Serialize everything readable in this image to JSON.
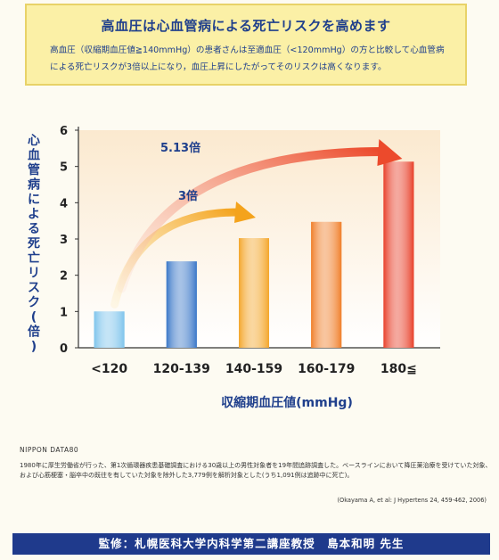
{
  "header": {
    "title": "高血圧は心血管病による死亡リスクを高めます",
    "description": "高血圧（収縮期血圧値≧140mmHg）の患者さんは至適血圧（<120mmHg）の方と比較して心血管病による死亡リスクが3倍以上になり，血圧上昇にしたがってそのリスクは高くなります。"
  },
  "chart_data": {
    "type": "bar",
    "categories": [
      "<120",
      "120-139",
      "140-159",
      "160-179",
      "180≦"
    ],
    "values": [
      1.0,
      2.38,
      3.02,
      3.47,
      5.13
    ],
    "xlabel": "収縮期血圧値(mmHg)",
    "ylabel": "心血管病による死亡リスク(倍)",
    "ylim": [
      0,
      6
    ],
    "yticks": [
      "0",
      "1",
      "2",
      "3",
      "4",
      "5",
      "6"
    ],
    "annotations": [
      "3倍",
      "5.13倍"
    ],
    "bar_colors": [
      "#7ec4ec",
      "#3b78c8",
      "#f4a62a",
      "#f07f2a",
      "#e8402a"
    ],
    "grid": false
  },
  "source": {
    "study": "NIPPON DATA80",
    "note": "1980年に厚生労働省が行った、第1次循環器疾患基礎調査における30歳以上の男性対象者を19年間追跡調査した。ベースラインにおいて降圧薬治療を受けていた対象、および心筋梗塞・脳卒中の既往を有していた対象を除外した3,779例を解析対象とした(うち1,091例は追跡中に死亡)。",
    "citation": "(Okayama A, et al: J Hypertens 24, 459-462, 2006)"
  },
  "footer": {
    "label": "監修：札幌医科大学内科学第二講座教授　島本和明 先生"
  }
}
